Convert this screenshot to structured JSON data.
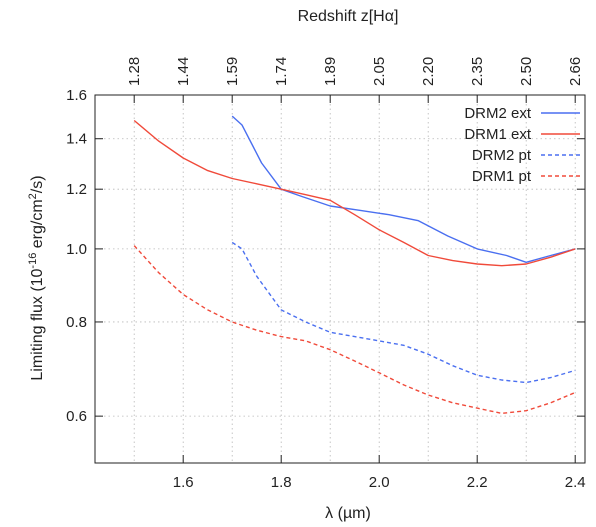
{
  "chart_data": {
    "type": "line",
    "x_axis": {
      "label": "λ (µm)",
      "ticks": [
        1.6,
        1.8,
        2.0,
        2.2,
        2.4
      ],
      "tick_labels": [
        "1.6",
        "1.8",
        "2.0",
        "2.2",
        "2.4"
      ],
      "range": [
        1.42,
        2.42
      ]
    },
    "top_axis": {
      "label": "Redshift z[Hα]",
      "tick_labels": [
        "1.28",
        "1.44",
        "1.59",
        "1.74",
        "1.89",
        "2.05",
        "2.20",
        "2.35",
        "2.50",
        "2.66"
      ],
      "tick_wavelengths": [
        1.5,
        1.6,
        1.7,
        1.8,
        1.9,
        2.0,
        2.1,
        2.2,
        2.3,
        2.4
      ]
    },
    "y_axis": {
      "label_main": "Limiting flux (10",
      "label_exp1": "-16",
      "label_mid": " erg/cm",
      "label_exp2": "2",
      "label_end": "/s)",
      "scale": "log",
      "ticks": [
        0.6,
        0.8,
        1.0,
        1.2,
        1.4,
        1.6
      ],
      "tick_labels": [
        "0.6",
        "0.8",
        "1.0",
        "1.2",
        "1.4",
        "1.6"
      ],
      "range": [
        0.52,
        1.6
      ]
    },
    "grid": true,
    "legend_position": "top-right",
    "series": [
      {
        "name": "DRM2 ext",
        "color": "#4a6ff0",
        "dash": "solid",
        "x": [
          1.7,
          1.72,
          1.76,
          1.8,
          1.84,
          1.9,
          1.96,
          2.02,
          2.08,
          2.14,
          2.2,
          2.26,
          2.3,
          2.35,
          2.4
        ],
        "y": [
          1.5,
          1.46,
          1.3,
          1.2,
          1.175,
          1.14,
          1.125,
          1.11,
          1.09,
          1.04,
          1.0,
          0.98,
          0.96,
          0.98,
          1.0
        ]
      },
      {
        "name": "DRM1 ext",
        "color": "#f04a3a",
        "dash": "solid",
        "x": [
          1.5,
          1.55,
          1.6,
          1.65,
          1.7,
          1.75,
          1.8,
          1.85,
          1.9,
          1.95,
          2.0,
          2.05,
          2.1,
          2.15,
          2.2,
          2.25,
          2.3,
          2.35,
          2.4
        ],
        "y": [
          1.48,
          1.39,
          1.32,
          1.27,
          1.24,
          1.22,
          1.2,
          1.18,
          1.16,
          1.11,
          1.06,
          1.02,
          0.98,
          0.965,
          0.955,
          0.95,
          0.955,
          0.975,
          1.0
        ]
      },
      {
        "name": "DRM2 pt",
        "color": "#4a6ff0",
        "dash": "dashed",
        "x": [
          1.7,
          1.72,
          1.75,
          1.8,
          1.85,
          1.9,
          1.95,
          2.0,
          2.05,
          2.1,
          2.15,
          2.2,
          2.25,
          2.3,
          2.35,
          2.4
        ],
        "y": [
          1.02,
          1.0,
          0.92,
          0.83,
          0.8,
          0.775,
          0.765,
          0.755,
          0.745,
          0.725,
          0.7,
          0.68,
          0.67,
          0.665,
          0.675,
          0.69
        ]
      },
      {
        "name": "DRM1 pt",
        "color": "#f04a3a",
        "dash": "dashed",
        "x": [
          1.5,
          1.55,
          1.6,
          1.65,
          1.7,
          1.75,
          1.8,
          1.85,
          1.9,
          1.95,
          2.0,
          2.05,
          2.1,
          2.15,
          2.2,
          2.25,
          2.3,
          2.35,
          2.4
        ],
        "y": [
          1.01,
          0.93,
          0.87,
          0.83,
          0.8,
          0.78,
          0.765,
          0.755,
          0.735,
          0.71,
          0.685,
          0.66,
          0.64,
          0.625,
          0.615,
          0.605,
          0.61,
          0.625,
          0.645
        ]
      }
    ]
  }
}
